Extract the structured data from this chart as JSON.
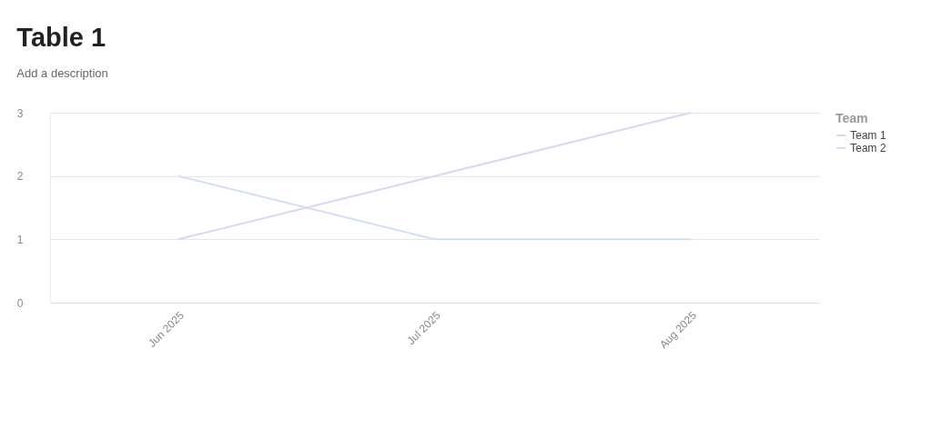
{
  "chart_data": {
    "type": "line",
    "title": "Table 1",
    "subtitle": "Add a description",
    "legend_title": "Team",
    "categories": [
      "Jun 2025",
      "Jul 2025",
      "Aug 2025"
    ],
    "series": [
      {
        "name": "Team 1",
        "color": "#ddd6f3",
        "values": [
          1,
          2,
          3
        ]
      },
      {
        "name": "Team 2",
        "color": "#d4def7",
        "values": [
          2,
          1,
          1
        ]
      }
    ],
    "ylim": [
      0,
      3
    ],
    "yticks": [
      0,
      1,
      2,
      3
    ],
    "grid": "y",
    "legend": "top right",
    "marker": "none",
    "line_style": "solid"
  }
}
